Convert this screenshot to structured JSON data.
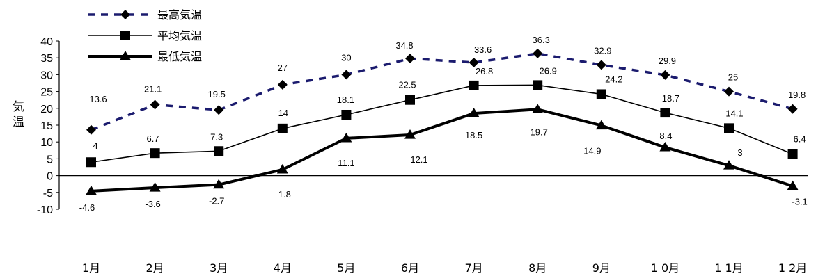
{
  "chart_data": {
    "type": "line",
    "ylabel": "気温",
    "ylim": [
      -10,
      40
    ],
    "yticks": [
      40,
      35,
      30,
      25,
      20,
      15,
      10,
      5,
      0,
      -5,
      -10
    ],
    "categories": [
      "1月",
      "2月",
      "3月",
      "4月",
      "5月",
      "6月",
      "7月",
      "8月",
      "9月",
      "10月",
      "11月",
      "12月"
    ],
    "category_labels": [
      "1月",
      "2月",
      "3月",
      "4月",
      "5月",
      "6月",
      "7月",
      "8月",
      "9月",
      "1 0月",
      "1 1月",
      "1 2月"
    ],
    "legend_position": "top-left",
    "grid": false,
    "series": [
      {
        "key": "max",
        "name": "最高気温",
        "values": [
          13.6,
          21.1,
          19.5,
          27,
          30,
          34.8,
          33.6,
          36.3,
          32.9,
          29.9,
          25,
          19.8
        ],
        "labels": [
          "13.6",
          "21.1",
          "19.5",
          "27",
          "30",
          "34.8",
          "33.6",
          "36.3",
          "32.9",
          "29.9",
          "25",
          "19.8"
        ],
        "marker": "diamond",
        "line_style": "dashed",
        "color": "#1b1b6e"
      },
      {
        "key": "avg",
        "name": "平均気温",
        "values": [
          4,
          6.7,
          7.3,
          14,
          18.1,
          22.5,
          26.8,
          26.9,
          24.2,
          18.7,
          14.1,
          6.4
        ],
        "labels": [
          "4",
          "6.7",
          "7.3",
          "14",
          "18.1",
          "22.5",
          "26.8",
          "26.9",
          "24.2",
          "18.7",
          "14.1",
          "6.4"
        ],
        "marker": "square",
        "line_style": "solid",
        "color": "#000000"
      },
      {
        "key": "min",
        "name": "最低気温",
        "values": [
          -4.6,
          -3.6,
          -2.7,
          1.8,
          11.1,
          12.1,
          18.5,
          19.7,
          14.9,
          8.4,
          3,
          -3.1
        ],
        "labels": [
          "-4.6",
          "-3.6",
          "-2.7",
          "1.8",
          "11.1",
          "12.1",
          "18.5",
          "19.7",
          "14.9",
          "8.4",
          "3",
          "-3.1"
        ],
        "marker": "triangle",
        "line_style": "thick",
        "color": "#000000"
      }
    ]
  }
}
